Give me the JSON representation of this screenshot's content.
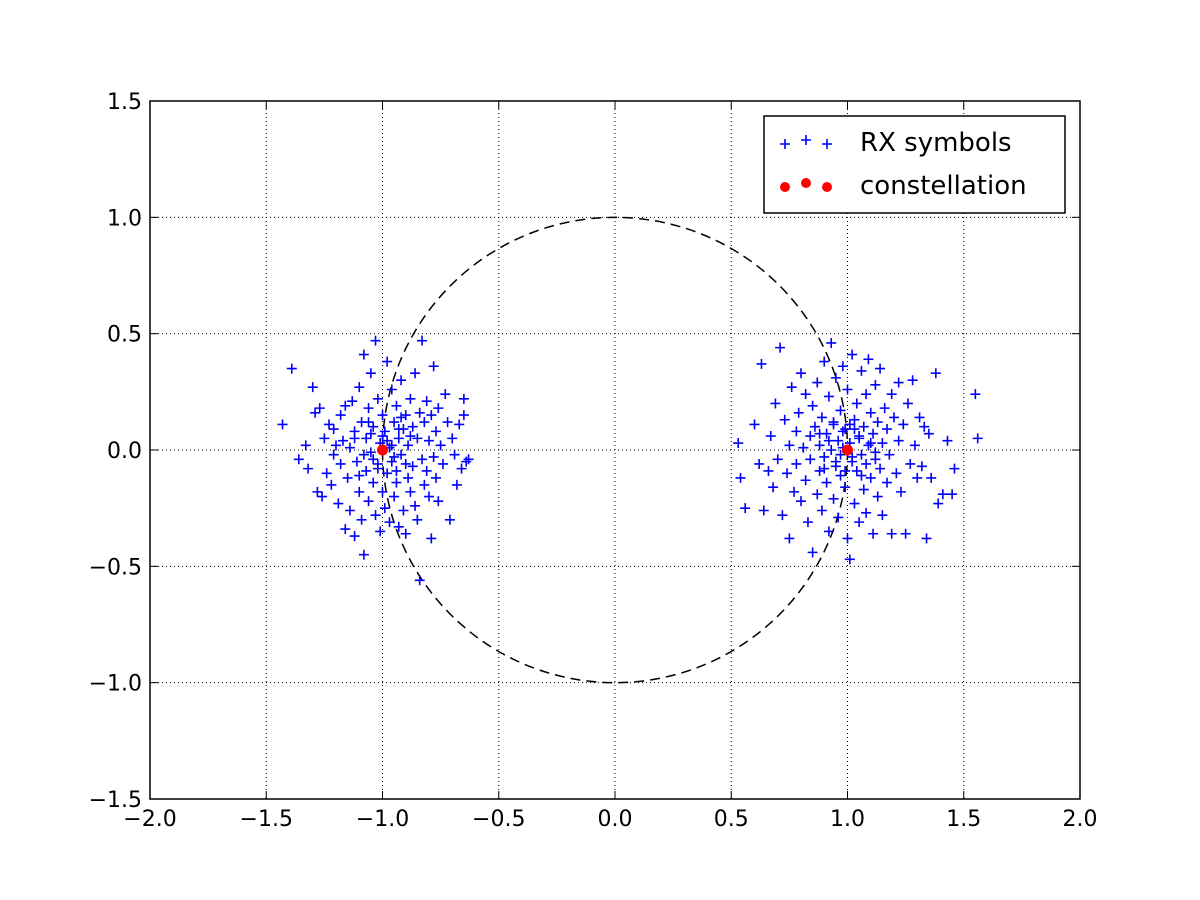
{
  "chart_data": {
    "type": "scatter",
    "title": "",
    "xlabel": "",
    "ylabel": "",
    "xlim": [
      -2.0,
      2.0
    ],
    "ylim": [
      -1.5,
      1.5
    ],
    "grid": true,
    "grid_style": "dotted",
    "xticks": [
      -2.0,
      -1.5,
      -1.0,
      -0.5,
      0.0,
      0.5,
      1.0,
      1.5,
      2.0
    ],
    "yticks": [
      -1.5,
      -1.0,
      -0.5,
      0.0,
      0.5,
      1.0,
      1.5
    ],
    "xtick_labels": [
      "−2.0",
      "−1.5",
      "−1.0",
      "−0.5",
      "0.0",
      "0.5",
      "1.0",
      "1.5",
      "2.0"
    ],
    "ytick_labels": [
      "−1.5",
      "−1.0",
      "−0.5",
      "0.0",
      "0.5",
      "1.0",
      "1.5"
    ],
    "legend_position": "top-right",
    "unit_circle": {
      "center": [
        0,
        0
      ],
      "radius": 1.0,
      "style": "dashed",
      "color": "#000000"
    },
    "series": [
      {
        "name": "RX symbols",
        "marker": "+",
        "color": "#0000ff",
        "points": [
          [
            -1.43,
            0.11
          ],
          [
            -1.39,
            0.35
          ],
          [
            -1.36,
            -0.04
          ],
          [
            -1.33,
            0.02
          ],
          [
            -1.32,
            -0.08
          ],
          [
            -1.3,
            0.27
          ],
          [
            -1.29,
            0.16
          ],
          [
            -1.28,
            -0.18
          ],
          [
            -1.27,
            0.18
          ],
          [
            -1.26,
            -0.2
          ],
          [
            -1.25,
            0.05
          ],
          [
            -1.24,
            -0.1
          ],
          [
            -1.23,
            0.11
          ],
          [
            -1.22,
            -0.15
          ],
          [
            -1.21,
            0.09
          ],
          [
            -1.21,
            -0.02
          ],
          [
            -1.2,
            0.02
          ],
          [
            -1.19,
            -0.23
          ],
          [
            -1.18,
            0.15
          ],
          [
            -1.18,
            -0.06
          ],
          [
            -1.17,
            0.04
          ],
          [
            -1.16,
            -0.34
          ],
          [
            -1.16,
            0.19
          ],
          [
            -1.15,
            -0.12
          ],
          [
            -1.14,
            0.01
          ],
          [
            -1.14,
            -0.26
          ],
          [
            -1.13,
            0.21
          ],
          [
            -1.12,
            -0.37
          ],
          [
            -1.12,
            0.08
          ],
          [
            -1.11,
            -0.05
          ],
          [
            -1.1,
            0.27
          ],
          [
            -1.1,
            -0.18
          ],
          [
            -1.09,
            0.12
          ],
          [
            -1.09,
            -0.3
          ],
          [
            -1.08,
            0.41
          ],
          [
            -1.08,
            -0.45
          ],
          [
            -1.07,
            -0.09
          ],
          [
            -1.07,
            0.05
          ],
          [
            -1.06,
            0.18
          ],
          [
            -1.06,
            -0.22
          ],
          [
            -1.05,
            0.33
          ],
          [
            -1.05,
            -0.01
          ],
          [
            -1.04,
            0.1
          ],
          [
            -1.04,
            -0.14
          ],
          [
            -1.03,
            0.47
          ],
          [
            -1.03,
            -0.28
          ],
          [
            -1.02,
            0.22
          ],
          [
            -1.02,
            -0.06
          ],
          [
            -1.01,
            0.03
          ],
          [
            -1.01,
            -0.35
          ],
          [
            -1.0,
            0.15
          ],
          [
            -1.0,
            -0.18
          ],
          [
            -0.99,
            0.08
          ],
          [
            -0.99,
            -0.25
          ],
          [
            -0.98,
            0.38
          ],
          [
            -0.98,
            -0.1
          ],
          [
            -0.97,
            0.01
          ],
          [
            -0.97,
            -0.31
          ],
          [
            -0.96,
            0.26
          ],
          [
            -0.96,
            -0.05
          ],
          [
            -0.95,
            0.12
          ],
          [
            -0.95,
            -0.2
          ],
          [
            -0.94,
            0.19
          ],
          [
            -0.94,
            -0.14
          ],
          [
            -0.93,
            0.05
          ],
          [
            -0.93,
            -0.33
          ],
          [
            -0.92,
            0.3
          ],
          [
            -0.92,
            -0.02
          ],
          [
            -0.91,
            0.09
          ],
          [
            -0.91,
            -0.26
          ],
          [
            -0.9,
            0.15
          ],
          [
            -0.9,
            -0.36
          ],
          [
            -0.89,
            0.02
          ],
          [
            -0.89,
            -0.12
          ],
          [
            -0.88,
            0.22
          ],
          [
            -0.88,
            -0.18
          ],
          [
            -0.87,
            0.1
          ],
          [
            -0.87,
            -0.07
          ],
          [
            -0.86,
            0.33
          ],
          [
            -0.86,
            -0.24
          ],
          [
            -0.85,
            0.05
          ],
          [
            -0.85,
            -0.3
          ],
          [
            -0.84,
            0.16
          ],
          [
            -0.84,
            -0.56
          ],
          [
            -0.83,
            -0.04
          ],
          [
            -0.83,
            0.47
          ],
          [
            -0.82,
            0.12
          ],
          [
            -0.82,
            -0.15
          ],
          [
            -0.81,
            0.21
          ],
          [
            -0.81,
            -0.09
          ],
          [
            -0.8,
            0.04
          ],
          [
            -0.8,
            -0.2
          ],
          [
            -0.79,
            0.15
          ],
          [
            -0.79,
            -0.38
          ],
          [
            -0.78,
            0.36
          ],
          [
            -0.78,
            -0.03
          ],
          [
            -0.77,
            0.08
          ],
          [
            -0.77,
            -0.12
          ],
          [
            -0.76,
            0.18
          ],
          [
            -0.76,
            -0.22
          ],
          [
            -0.75,
            0.02
          ],
          [
            -0.74,
            -0.06
          ],
          [
            -0.73,
            0.24
          ],
          [
            -0.72,
            0.12
          ],
          [
            -0.71,
            -0.3
          ],
          [
            -0.7,
            0.05
          ],
          [
            -0.69,
            -0.02
          ],
          [
            -0.68,
            -0.15
          ],
          [
            -0.67,
            0.11
          ],
          [
            -0.66,
            -0.08
          ],
          [
            -0.65,
            0.22
          ],
          [
            -0.65,
            0.15
          ],
          [
            -0.64,
            -0.05
          ],
          [
            -0.63,
            -0.04
          ],
          [
            -1.12,
            0.05
          ],
          [
            -1.08,
            -0.02
          ],
          [
            -1.05,
            0.07
          ],
          [
            -1.02,
            -0.08
          ],
          [
            -0.98,
            0.04
          ],
          [
            -0.95,
            -0.03
          ],
          [
            -0.93,
            0.09
          ],
          [
            -0.9,
            -0.06
          ],
          [
            -0.96,
            0.02
          ],
          [
            -1.04,
            -0.04
          ],
          [
            -1.0,
            0.06
          ],
          [
            -0.94,
            -0.09
          ],
          [
            -1.06,
            0.12
          ],
          [
            -0.88,
            0.06
          ],
          [
            -1.1,
            -0.11
          ],
          [
            -0.92,
            0.14
          ],
          [
            0.53,
            0.03
          ],
          [
            0.54,
            -0.12
          ],
          [
            0.56,
            -0.25
          ],
          [
            0.6,
            0.11
          ],
          [
            0.62,
            -0.06
          ],
          [
            0.63,
            0.37
          ],
          [
            0.64,
            -0.26
          ],
          [
            0.66,
            -0.09
          ],
          [
            0.67,
            0.06
          ],
          [
            0.68,
            -0.16
          ],
          [
            0.69,
            0.2
          ],
          [
            0.7,
            -0.04
          ],
          [
            0.71,
            0.44
          ],
          [
            0.72,
            -0.28
          ],
          [
            0.73,
            0.13
          ],
          [
            0.74,
            -0.1
          ],
          [
            0.75,
            0.02
          ],
          [
            0.75,
            -0.38
          ],
          [
            0.76,
            0.27
          ],
          [
            0.77,
            -0.18
          ],
          [
            0.78,
            0.08
          ],
          [
            0.78,
            -0.06
          ],
          [
            0.79,
            0.16
          ],
          [
            0.8,
            -0.22
          ],
          [
            0.8,
            0.33
          ],
          [
            0.81,
            0.01
          ],
          [
            0.82,
            -0.13
          ],
          [
            0.82,
            0.24
          ],
          [
            0.83,
            -0.31
          ],
          [
            0.84,
            0.06
          ],
          [
            0.84,
            -0.04
          ],
          [
            0.85,
            0.19
          ],
          [
            0.85,
            -0.44
          ],
          [
            0.86,
            0.1
          ],
          [
            0.87,
            -0.19
          ],
          [
            0.87,
            0.29
          ],
          [
            0.88,
            -0.09
          ],
          [
            0.88,
            0.02
          ],
          [
            0.89,
            0.14
          ],
          [
            0.89,
            -0.26
          ],
          [
            0.9,
            0.38
          ],
          [
            0.9,
            -0.03
          ],
          [
            0.91,
            0.07
          ],
          [
            0.91,
            -0.14
          ],
          [
            0.92,
            0.23
          ],
          [
            0.92,
            -0.35
          ],
          [
            0.93,
            0.46
          ],
          [
            0.93,
            0.0
          ],
          [
            0.94,
            0.11
          ],
          [
            0.94,
            -0.21
          ],
          [
            0.95,
            0.31
          ],
          [
            0.95,
            -0.07
          ],
          [
            0.96,
            0.04
          ],
          [
            0.96,
            -0.29
          ],
          [
            0.97,
            0.17
          ],
          [
            0.97,
            -0.11
          ],
          [
            0.98,
            0.36
          ],
          [
            0.98,
            0.01
          ],
          [
            0.99,
            -0.16
          ],
          [
            0.99,
            0.09
          ],
          [
            1.0,
            0.26
          ],
          [
            1.0,
            -0.38
          ],
          [
            1.01,
            0.03
          ],
          [
            1.01,
            -0.47
          ],
          [
            1.02,
            0.41
          ],
          [
            1.02,
            -0.05
          ],
          [
            1.03,
            0.13
          ],
          [
            1.03,
            -0.23
          ],
          [
            1.04,
            0.2
          ],
          [
            1.04,
            -0.09
          ],
          [
            1.05,
            0.06
          ],
          [
            1.05,
            -0.31
          ],
          [
            1.06,
            0.34
          ],
          [
            1.06,
            -0.02
          ],
          [
            1.07,
            0.1
          ],
          [
            1.07,
            -0.17
          ],
          [
            1.08,
            0.24
          ],
          [
            1.08,
            -0.27
          ],
          [
            1.09,
            0.39
          ],
          [
            1.09,
            0.02
          ],
          [
            1.1,
            -0.12
          ],
          [
            1.1,
            0.16
          ],
          [
            1.11,
            -0.36
          ],
          [
            1.11,
            0.07
          ],
          [
            1.12,
            -0.04
          ],
          [
            1.12,
            0.28
          ],
          [
            1.13,
            -0.2
          ],
          [
            1.13,
            0.12
          ],
          [
            1.14,
            -0.08
          ],
          [
            1.14,
            0.35
          ],
          [
            1.15,
            0.03
          ],
          [
            1.15,
            -0.28
          ],
          [
            1.16,
            0.18
          ],
          [
            1.17,
            -0.14
          ],
          [
            1.17,
            0.09
          ],
          [
            1.18,
            -0.02
          ],
          [
            1.19,
            0.24
          ],
          [
            1.19,
            -0.36
          ],
          [
            1.2,
            0.14
          ],
          [
            1.21,
            -0.1
          ],
          [
            1.22,
            0.29
          ],
          [
            1.22,
            0.04
          ],
          [
            1.23,
            -0.18
          ],
          [
            1.24,
            0.11
          ],
          [
            1.25,
            -0.36
          ],
          [
            1.26,
            0.2
          ],
          [
            1.27,
            -0.06
          ],
          [
            1.28,
            0.3
          ],
          [
            1.29,
            0.02
          ],
          [
            1.3,
            -0.12
          ],
          [
            1.31,
            0.14
          ],
          [
            1.32,
            -0.07
          ],
          [
            1.33,
            0.1
          ],
          [
            1.34,
            -0.38
          ],
          [
            1.35,
            0.07
          ],
          [
            1.36,
            -0.12
          ],
          [
            1.38,
            0.33
          ],
          [
            1.39,
            -0.23
          ],
          [
            1.41,
            -0.19
          ],
          [
            1.43,
            0.04
          ],
          [
            1.45,
            -0.19
          ],
          [
            1.46,
            -0.08
          ],
          [
            1.55,
            0.24
          ],
          [
            1.56,
            0.05
          ],
          [
            0.92,
            0.04
          ],
          [
            0.95,
            -0.05
          ],
          [
            0.98,
            0.08
          ],
          [
            1.02,
            -0.03
          ],
          [
            1.05,
            0.05
          ],
          [
            1.08,
            -0.06
          ],
          [
            0.97,
            -0.02
          ],
          [
            1.03,
            0.09
          ],
          [
            0.9,
            -0.08
          ],
          [
            1.1,
            0.03
          ],
          [
            0.94,
            0.12
          ],
          [
            1.06,
            -0.11
          ],
          [
            0.99,
            -0.09
          ],
          [
            1.01,
            0.11
          ],
          [
            0.88,
            0.07
          ],
          [
            1.12,
            -0.01
          ]
        ]
      },
      {
        "name": "constellation",
        "marker": "o",
        "color": "#ff0000",
        "points": [
          [
            -1.0,
            0.0
          ],
          [
            1.0,
            0.0
          ]
        ]
      }
    ]
  }
}
